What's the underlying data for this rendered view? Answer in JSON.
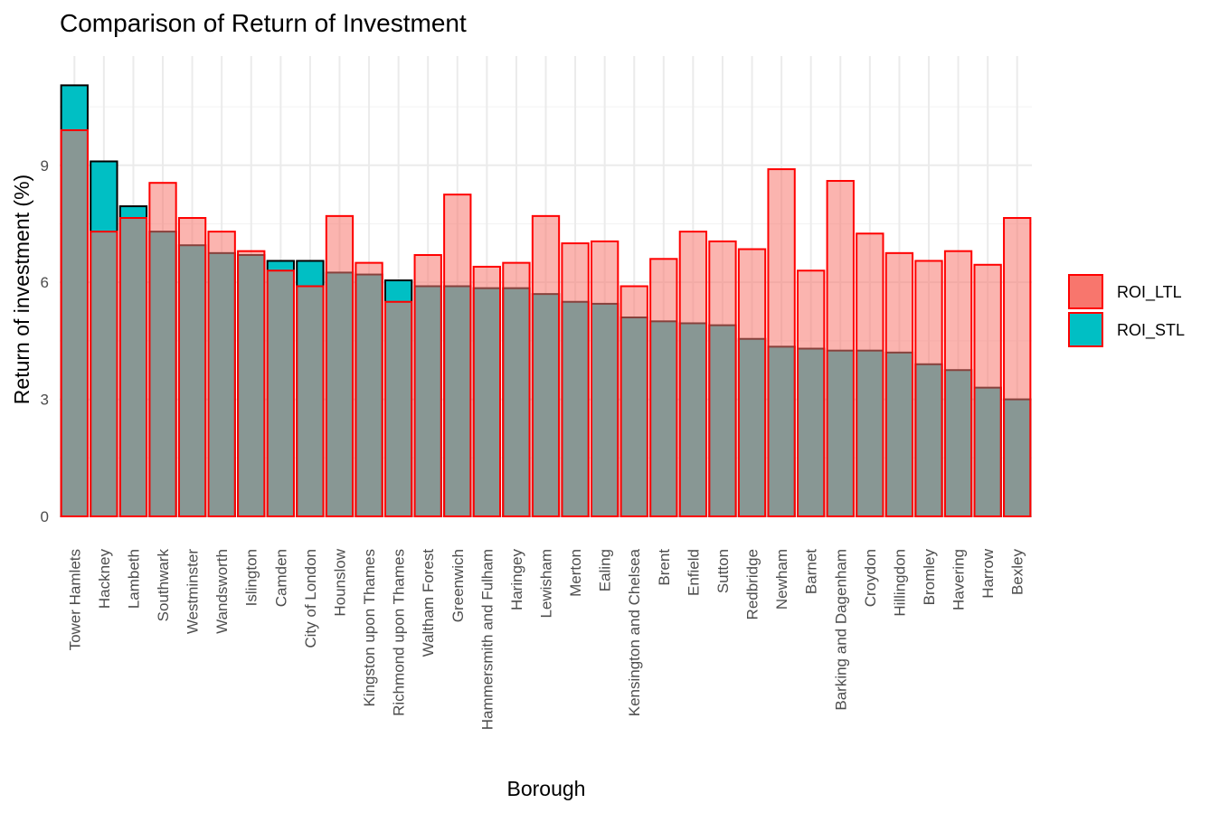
{
  "chart_data": {
    "type": "bar",
    "title": "Comparison of Return of Investment",
    "xlabel": "Borough",
    "ylabel": "Return of investment (%)",
    "ylim": [
      0,
      11.8
    ],
    "yticks": [
      0,
      3,
      6,
      9
    ],
    "grid": true,
    "legend_position": "right",
    "categories": [
      "Tower Hamlets",
      "Hackney",
      "Lambeth",
      "Southwark",
      "Westminster",
      "Wandsworth",
      "Islington",
      "Camden",
      "City of London",
      "Hounslow",
      "Kingston upon Thames",
      "Richmond upon Thames",
      "Waltham Forest",
      "Greenwich",
      "Hammersmith and Fulham",
      "Haringey",
      "Lewisham",
      "Merton",
      "Ealing",
      "Kensington and Chelsea",
      "Brent",
      "Enfield",
      "Sutton",
      "Redbridge",
      "Newham",
      "Barnet",
      "Barking and Dagenham",
      "Croydon",
      "Hillingdon",
      "Bromley",
      "Havering",
      "Harrow",
      "Bexley"
    ],
    "series": [
      {
        "name": "ROI_LTL",
        "color": "#F8766D",
        "values": [
          9.9,
          7.3,
          7.65,
          8.55,
          7.65,
          7.3,
          6.8,
          6.3,
          5.9,
          7.7,
          6.5,
          5.5,
          6.7,
          8.25,
          6.4,
          6.5,
          7.7,
          7.0,
          7.05,
          5.9,
          6.6,
          7.3,
          7.05,
          6.85,
          8.9,
          6.3,
          8.6,
          7.25,
          6.75,
          6.55,
          6.8,
          6.45,
          7.65
        ]
      },
      {
        "name": "ROI_STL",
        "color": "#00BFC4",
        "values": [
          11.05,
          9.1,
          7.95,
          7.3,
          6.95,
          6.75,
          6.7,
          6.55,
          6.55,
          6.25,
          6.2,
          6.05,
          5.9,
          5.9,
          5.85,
          5.85,
          5.7,
          5.5,
          5.45,
          5.1,
          5.0,
          4.95,
          4.9,
          4.55,
          4.35,
          4.3,
          4.25,
          4.25,
          4.2,
          3.9,
          3.75,
          3.3,
          3.0
        ]
      }
    ]
  }
}
